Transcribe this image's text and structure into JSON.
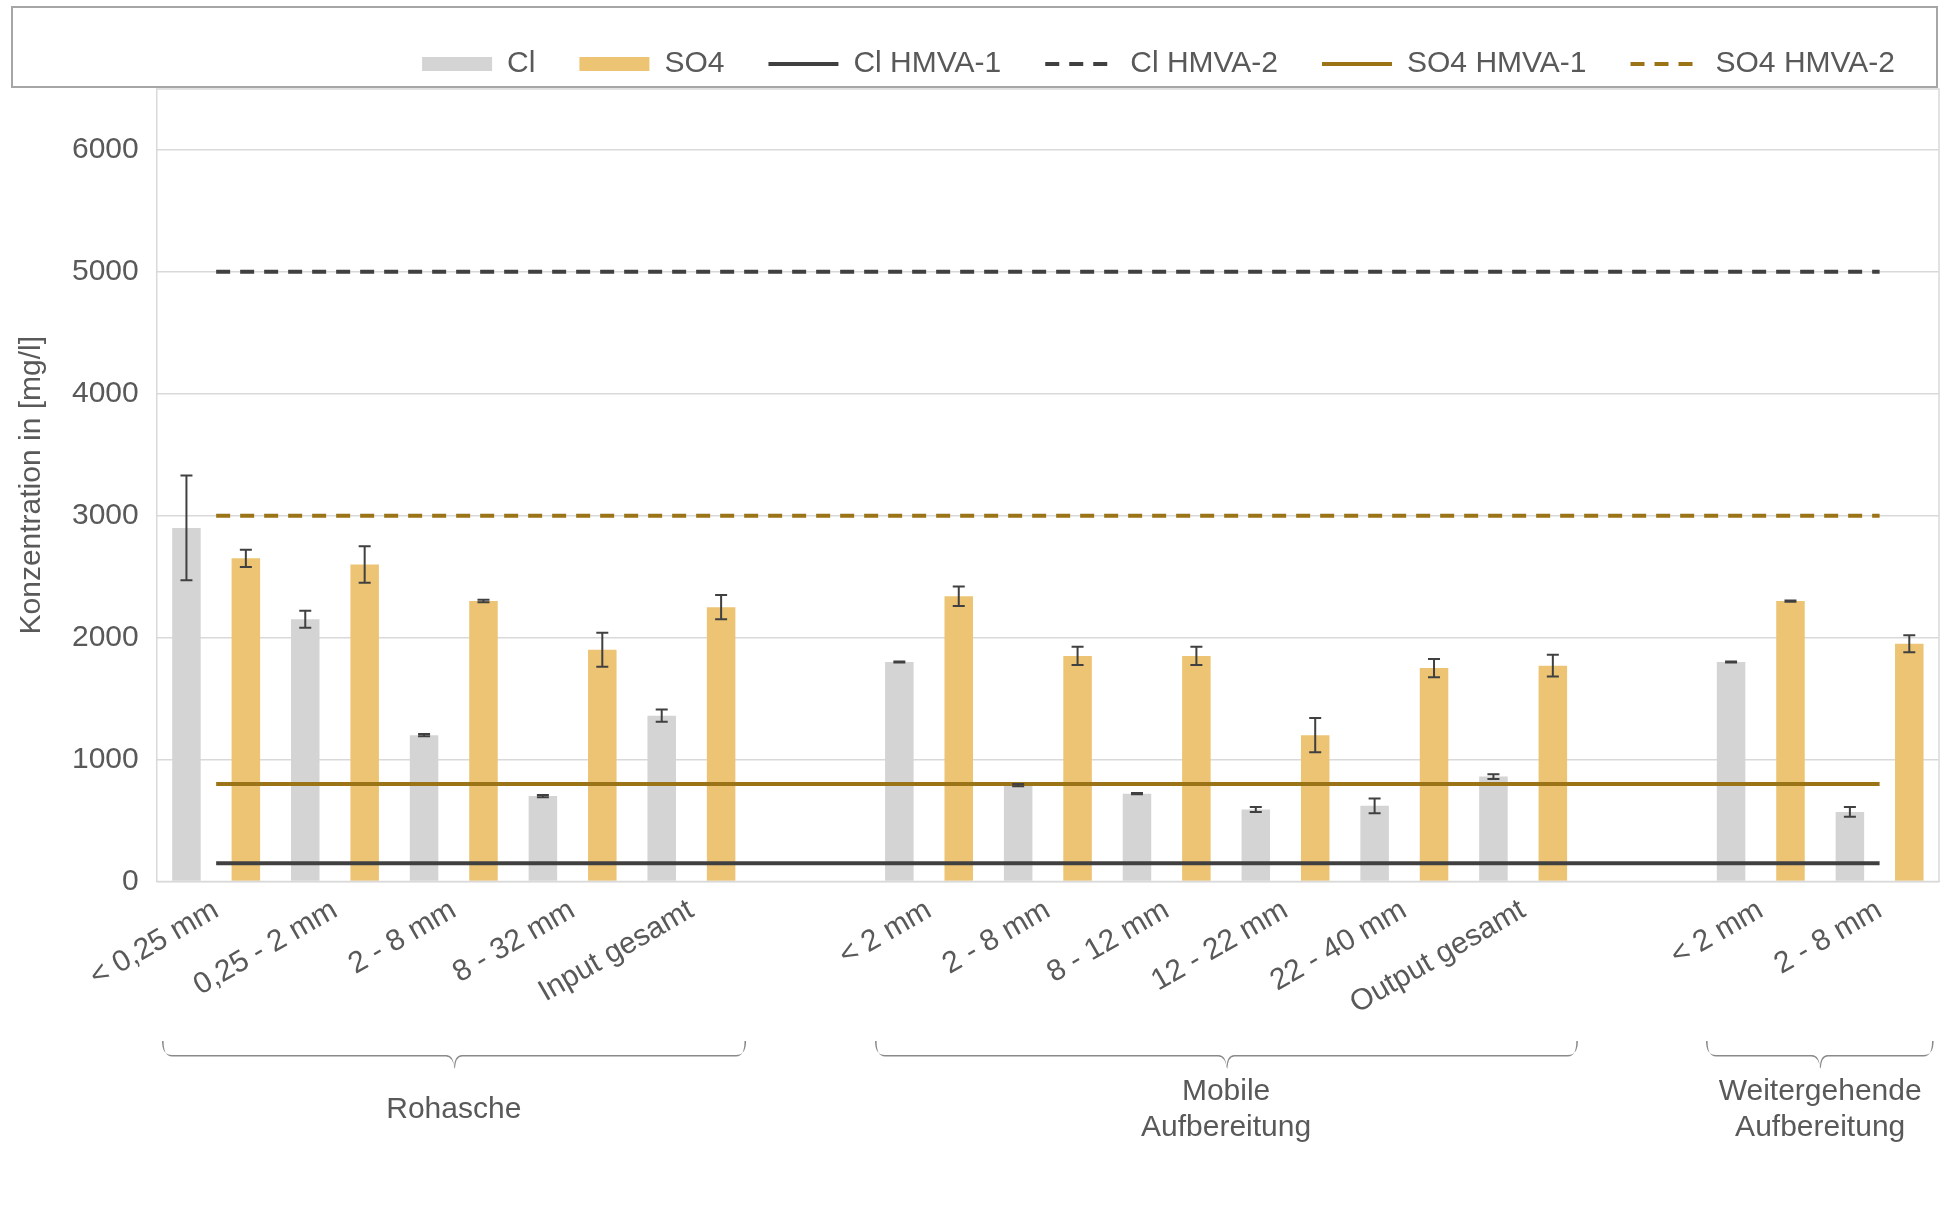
{
  "chart_data": {
    "type": "bar",
    "ylabel": "Konzentration in [mg/l]",
    "categories": [
      "< 0,25 mm",
      "0,25 - 2 mm",
      "2 - 8 mm",
      "8 - 32 mm",
      "Input gesamt",
      null,
      "< 2 mm",
      "2 - 8 mm",
      "8 - 12 mm",
      "12 - 22 mm",
      "22 - 40 mm",
      "Output gesamt",
      null,
      "< 2 mm",
      "2 - 8 mm"
    ],
    "series": [
      {
        "name": "Cl",
        "color": "#d4d4d4",
        "values": [
          2900,
          2150,
          1200,
          700,
          1360,
          null,
          1800,
          790,
          720,
          590,
          620,
          860,
          null,
          1800,
          570
        ],
        "errors": [
          430,
          70,
          10,
          10,
          50,
          null,
          5,
          10,
          5,
          20,
          60,
          20,
          null,
          5,
          40
        ]
      },
      {
        "name": "SO4",
        "color": "#ecc473",
        "values": [
          2650,
          2600,
          2300,
          1900,
          2250,
          null,
          2340,
          1850,
          1850,
          1200,
          1750,
          1770,
          null,
          2300,
          1950
        ],
        "errors": [
          70,
          150,
          10,
          140,
          100,
          null,
          80,
          75,
          75,
          140,
          75,
          90,
          null,
          5,
          70
        ]
      },
      {
        "name": "Cl HMVA-1",
        "type": "line",
        "color": "#404040",
        "line_style": "solid",
        "values": [
          150,
          150,
          150,
          150,
          150,
          150,
          150,
          150,
          150,
          150,
          150,
          150,
          150,
          150,
          150
        ]
      },
      {
        "name": "Cl HMVA-2",
        "type": "line",
        "color": "#404040",
        "line_style": "dashed",
        "values": [
          5000,
          5000,
          5000,
          5000,
          5000,
          5000,
          5000,
          5000,
          5000,
          5000,
          5000,
          5000,
          5000,
          5000,
          5000
        ]
      },
      {
        "name": "SO4 HMVA-1",
        "type": "line",
        "color": "#9c7418",
        "line_style": "solid",
        "values": [
          800,
          800,
          800,
          800,
          800,
          800,
          800,
          800,
          800,
          800,
          800,
          800,
          800,
          800,
          800
        ]
      },
      {
        "name": "SO4 HMVA-2",
        "type": "line",
        "color": "#9c7418",
        "line_style": "dashed",
        "values": [
          3000,
          3000,
          3000,
          3000,
          3000,
          3000,
          3000,
          3000,
          3000,
          3000,
          3000,
          3000,
          3000,
          3000,
          3000
        ]
      }
    ],
    "ylim": [
      0,
      6500
    ],
    "yticks": [
      0,
      1000,
      2000,
      3000,
      4000,
      5000,
      6000
    ],
    "grid": "y",
    "legend": "top right",
    "marker": "none",
    "annotations": [
      "Rohasche",
      "Mobile\nAufbereitung",
      "Weitergehende\nAufbereitung"
    ]
  }
}
